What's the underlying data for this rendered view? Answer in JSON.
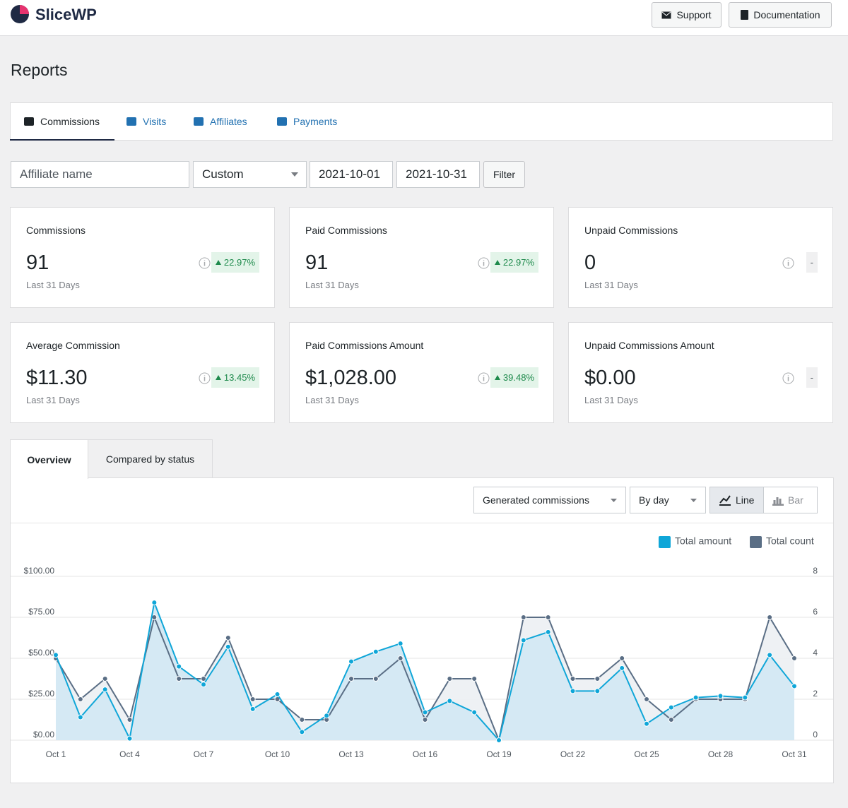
{
  "header": {
    "logo": "SliceWP",
    "buttons": [
      "Support",
      "Documentation"
    ]
  },
  "page_title": "Reports",
  "tabs": [
    "Commissions",
    "Visits",
    "Affiliates",
    "Payments"
  ],
  "filters": {
    "affiliate_placeholder": "Affiliate name",
    "range": "Custom",
    "start_date": "2021-10-01",
    "end_date": "2021-10-31",
    "button": "Filter"
  },
  "cards": [
    {
      "label": "Commissions",
      "value": "91",
      "period": "Last 31 Days",
      "change": "22.97%",
      "trend": "up"
    },
    {
      "label": "Paid Commissions",
      "value": "91",
      "period": "Last 31 Days",
      "change": "22.97%",
      "trend": "up"
    },
    {
      "label": "Unpaid Commissions",
      "value": "0",
      "period": "Last 31 Days",
      "change": "-",
      "trend": "none"
    },
    {
      "label": "Average Commission",
      "value": "$11.30",
      "period": "Last 31 Days",
      "change": "13.45%",
      "trend": "up"
    },
    {
      "label": "Paid Commissions Amount",
      "value": "$1,028.00",
      "period": "Last 31 Days",
      "change": "39.48%",
      "trend": "up"
    },
    {
      "label": "Unpaid Commissions Amount",
      "value": "$0.00",
      "period": "Last 31 Days",
      "change": "-",
      "trend": "none"
    }
  ],
  "chart_tabs": [
    "Overview",
    "Compared by status"
  ],
  "chart_controls": {
    "metric": "Generated commissions",
    "interval": "By day",
    "line": "Line",
    "bar": "Bar"
  },
  "chart_data": {
    "type": "line",
    "categories": [
      "Oct 1",
      null,
      null,
      "Oct 4",
      null,
      null,
      "Oct 7",
      null,
      null,
      "Oct 10",
      null,
      null,
      "Oct 13",
      null,
      null,
      "Oct 16",
      null,
      null,
      "Oct 19",
      null,
      null,
      "Oct 22",
      null,
      null,
      "Oct 25",
      null,
      null,
      "Oct 28",
      null,
      null,
      "Oct 31"
    ],
    "series": [
      {
        "name": "Total amount",
        "color": "#0fa6d8",
        "values": [
          52,
          14,
          31,
          1,
          84,
          45,
          34,
          57,
          19,
          28,
          5,
          15,
          48,
          54,
          59,
          17,
          24,
          17,
          0,
          61,
          66,
          30,
          30,
          44,
          10,
          20,
          26,
          27,
          26,
          52,
          33
        ]
      },
      {
        "name": "Total count",
        "color": "#5a6e85",
        "axis": "y2",
        "values": [
          4,
          2,
          3,
          1,
          6,
          3,
          3,
          5,
          2,
          2,
          1,
          1,
          3,
          3,
          4,
          1,
          3,
          3,
          0,
          6,
          6,
          3,
          3,
          4,
          2,
          1,
          2,
          2,
          2,
          6,
          4
        ]
      }
    ],
    "ylim": [
      0,
      100
    ],
    "yticks": [
      {
        "value": 0,
        "label": "$0.00"
      },
      {
        "value": 25,
        "label": "$25.00"
      },
      {
        "value": 50,
        "label": "$50.00"
      },
      {
        "value": 75,
        "label": "$75.00"
      },
      {
        "value": 100,
        "label": "$100.00"
      }
    ],
    "y2lim": [
      0,
      8
    ],
    "y2ticks": [
      0,
      2,
      4,
      6,
      8
    ],
    "grid": true,
    "legend": "top-right"
  }
}
